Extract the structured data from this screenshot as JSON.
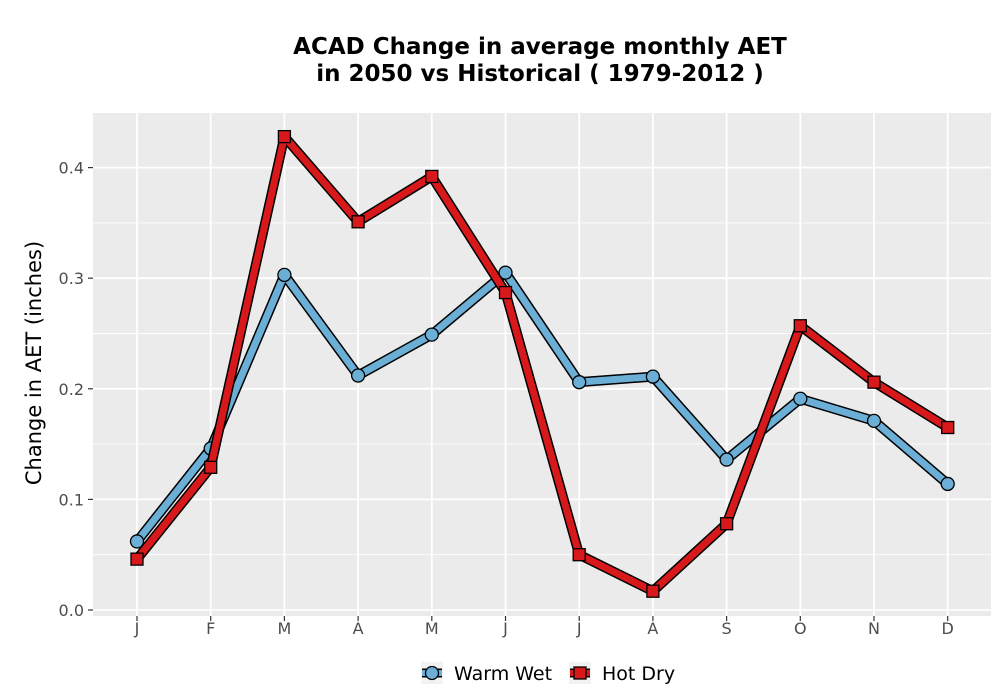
{
  "chart_data": {
    "type": "line",
    "title_lines": [
      "ACAD  Change in average monthly AET",
      "in 2050 vs Historical ( 1979-2012 )"
    ],
    "xlabel": "",
    "ylabel": "Change in AET (inches)",
    "categories": [
      "J",
      "F",
      "M",
      "A",
      "M",
      "J",
      "J",
      "A",
      "S",
      "O",
      "N",
      "D"
    ],
    "y_ticks": [
      "0.0",
      "0.1",
      "0.2",
      "0.3",
      "0.4"
    ],
    "ylim": [
      0,
      0.45
    ],
    "grid": true,
    "legend_position": "bottom",
    "series": [
      {
        "name": "Warm Wet",
        "color": "#6baed6",
        "marker": "circle",
        "values": [
          0.062,
          0.146,
          0.303,
          0.212,
          0.249,
          0.305,
          0.206,
          0.211,
          0.136,
          0.191,
          0.171,
          0.114
        ]
      },
      {
        "name": "Hot Dry",
        "color": "#d7191c",
        "marker": "square",
        "values": [
          0.046,
          0.129,
          0.428,
          0.351,
          0.392,
          0.287,
          0.05,
          0.017,
          0.078,
          0.257,
          0.206,
          0.165
        ]
      }
    ]
  },
  "colors": {
    "panel_background": "#ebebeb",
    "grid": "#ffffff",
    "outline": "#000000"
  }
}
